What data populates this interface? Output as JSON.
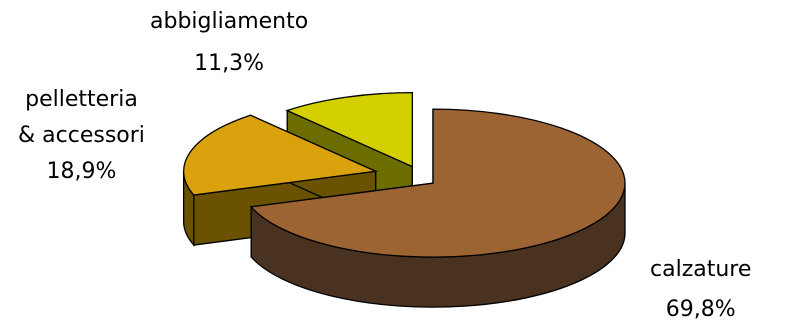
{
  "chart_data": {
    "type": "pie",
    "title": "",
    "style": "3d-exploded",
    "slices": [
      {
        "label": "calzature",
        "value": 69.8,
        "value_label": "69,8%",
        "color": "#9c6333",
        "side_color": "#4a3220"
      },
      {
        "label": "pelletteria & accessori",
        "label_lines": [
          "pelletteria",
          "& accessori"
        ],
        "value": 18.9,
        "value_label": "18,9%",
        "color": "#d9a20c",
        "side_color": "#6b5200"
      },
      {
        "label": "abbigliamento",
        "value": 11.3,
        "value_label": "11,3%",
        "color": "#d4d000",
        "side_color": "#6b6d00"
      }
    ]
  }
}
